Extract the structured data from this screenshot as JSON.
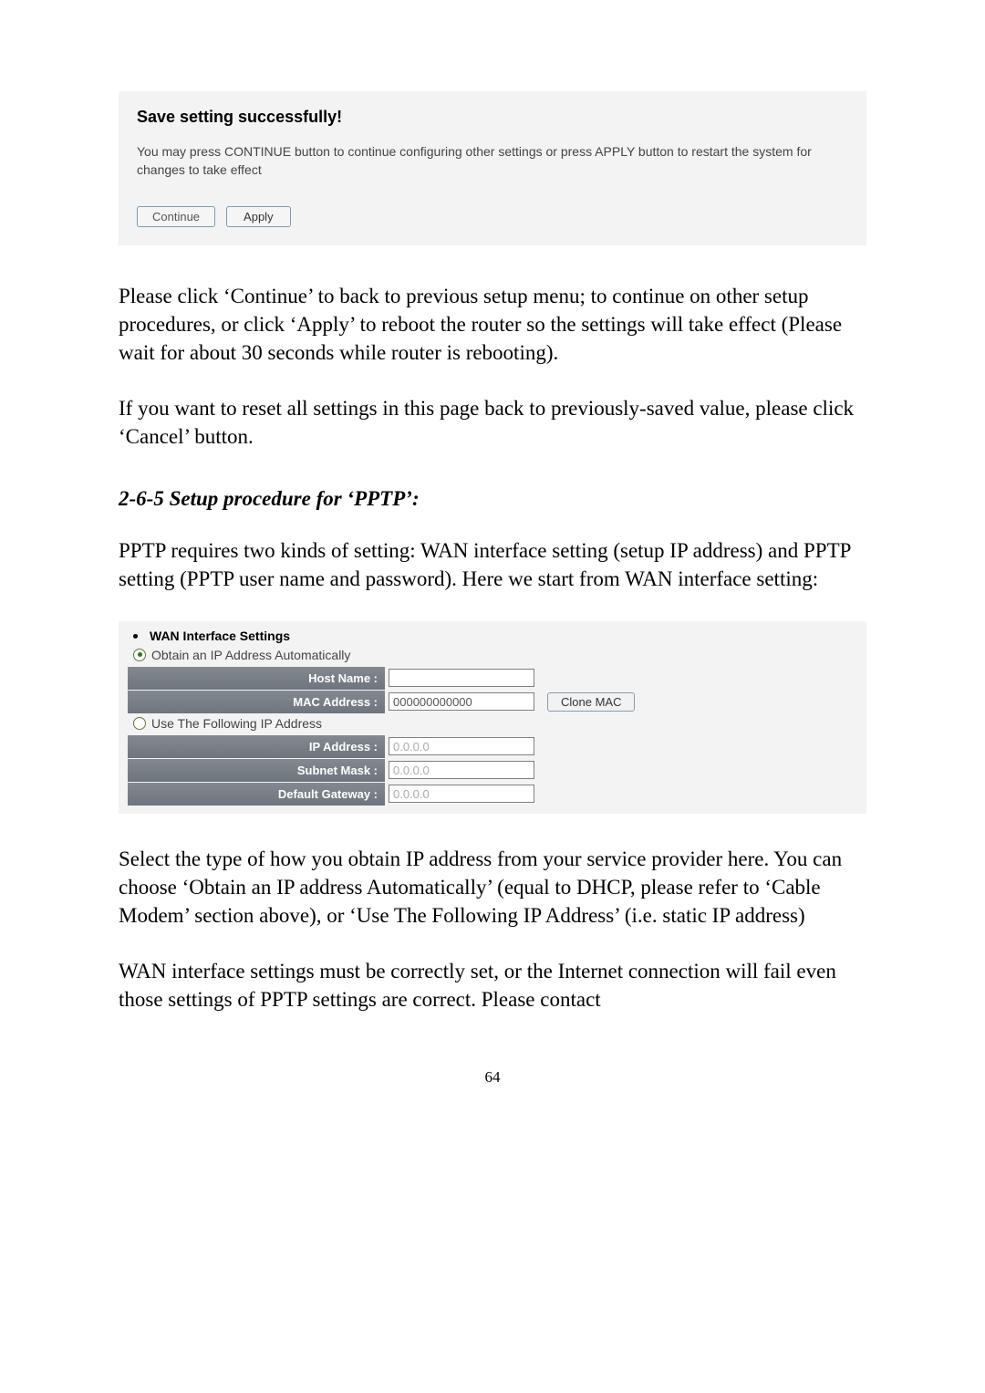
{
  "panel1": {
    "title": "Save setting successfully!",
    "text": "You may press CONTINUE button to continue configuring other settings or press APPLY button to restart the system for changes to take effect",
    "continue_label": "Continue",
    "apply_label": "Apply"
  },
  "paragraph1": "Please click ‘Continue’ to back to previous setup menu; to continue on other setup procedures, or click ‘Apply’ to reboot the router so the settings will take effect (Please wait for about 30 seconds while router is rebooting).",
  "paragraph2": "If you want to reset all settings in this page back to previously-saved value, please click ‘Cancel’ button.",
  "heading": "2-6-5 Setup procedure for ‘PPTP’:",
  "paragraph3": "PPTP requires two kinds of setting: WAN interface setting (setup IP address) and PPTP setting (PPTP user name and password). Here we start from WAN interface setting:",
  "wan": {
    "section_title": "WAN Interface Settings",
    "radio_auto_label": "Obtain an IP Address Automatically",
    "radio_static_label": "Use The Following IP Address",
    "host_name_label": "Host Name :",
    "host_name_value": "",
    "mac_label": "MAC Address :",
    "mac_value": "000000000000",
    "clone_label": "Clone MAC",
    "ip_label": "IP Address :",
    "ip_value": "0.0.0.0",
    "mask_label": "Subnet Mask :",
    "mask_value": "0.0.0.0",
    "gw_label": "Default Gateway :",
    "gw_value": "0.0.0.0"
  },
  "paragraph4": "Select the type of how you obtain IP address from your service provider here. You can choose ‘Obtain an IP address Automatically’ (equal to DHCP, please refer to ‘Cable Modem’ section above), or ‘Use The Following IP Address’ (i.e. static IP address)",
  "paragraph5": "WAN interface settings must be correctly set, or the Internet connection will fail even those settings of PPTP settings are correct. Please contact",
  "page_number": "64",
  "colors": {
    "panel_bg": "#f3f3f3",
    "label_bg_top": "#83898f",
    "label_bg_bottom": "#6e757d",
    "btn_border": "#7a9ab5"
  }
}
